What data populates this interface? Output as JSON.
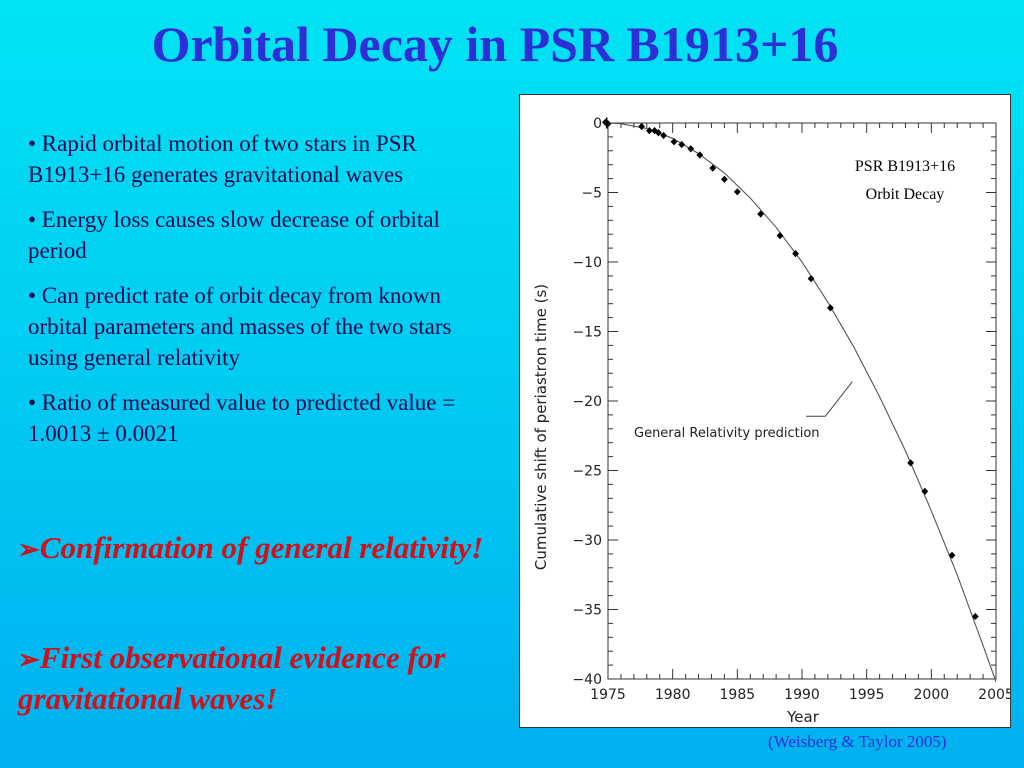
{
  "slide": {
    "title": "Orbital Decay in PSR B1913+16",
    "bullets": [
      "• Rapid orbital motion of two stars in PSR B1913+16 generates gravitational waves",
      "• Energy loss causes slow decrease of orbital period",
      "• Can predict rate of orbit decay from known orbital parameters and masses of the two stars using general relativity",
      "• Ratio of measured value to predicted value = 1.0013 ± 0.0021"
    ],
    "emphasis": [
      {
        "arrow": "➢",
        "text": "Confirmation of general relativity!"
      },
      {
        "arrow": "➢",
        "text": "First observational evidence for gravitational waves!"
      }
    ],
    "credit": "(Weisberg & Taylor 2005)",
    "colors": {
      "title": "#2e2ed6",
      "emphasis": "#d0101a",
      "bullets": "#0a0a50"
    }
  },
  "chart_data": {
    "type": "scatter",
    "title": "PSR B1913+16\nOrbit Decay",
    "title_lines": [
      "PSR B1913+16",
      "Orbit Decay"
    ],
    "xlabel": "Year",
    "ylabel": "Cumulative shift of periastron time (s)",
    "xlim": [
      1975,
      2005
    ],
    "ylim": [
      -40,
      0
    ],
    "xticks": [
      1975,
      1980,
      1985,
      1990,
      1995,
      2000,
      2005
    ],
    "yticks": [
      0,
      -5,
      -10,
      -15,
      -20,
      -25,
      -30,
      -35,
      -40
    ],
    "xtick_labels": [
      "1975",
      "1980",
      "1985",
      "1990",
      "1995",
      "2000",
      "2005"
    ],
    "ytick_labels": [
      "0",
      "−5",
      "−10",
      "−15",
      "−20",
      "−25",
      "−30",
      "−35",
      "−40"
    ],
    "annotation": "General Relativity prediction",
    "grid": false,
    "series": [
      {
        "kind": "points",
        "x": [
          1974.8,
          1975.0,
          1977.6,
          1978.2,
          1978.6,
          1978.9,
          1979.3,
          1980.1,
          1980.7,
          1981.4,
          1982.1,
          1983.1,
          1984.0,
          1985.0,
          1986.8,
          1988.3,
          1989.5,
          1990.7,
          1992.2,
          1998.4,
          1999.5,
          2001.6,
          2003.4
        ],
        "y": [
          0.05,
          -0.05,
          -0.25,
          -0.55,
          -0.55,
          -0.7,
          -0.9,
          -1.35,
          -1.55,
          -1.85,
          -2.3,
          -3.25,
          -4.05,
          -4.95,
          -6.55,
          -8.1,
          -9.4,
          -11.2,
          -13.3,
          -24.45,
          -26.5,
          -31.1,
          -35.5
        ]
      },
      {
        "kind": "curve",
        "x": [
          1975,
          1976,
          1978,
          1980,
          1982,
          1984,
          1986,
          1988,
          1990,
          1992,
          1994,
          1996,
          1998,
          2000,
          2002,
          2004,
          2005
        ],
        "y": [
          0,
          -0.05,
          -0.4,
          -1.1,
          -2.2,
          -3.6,
          -5.4,
          -7.5,
          -10.0,
          -12.9,
          -16.1,
          -19.7,
          -23.6,
          -27.9,
          -32.5,
          -37.6,
          -40.2
        ]
      }
    ]
  }
}
